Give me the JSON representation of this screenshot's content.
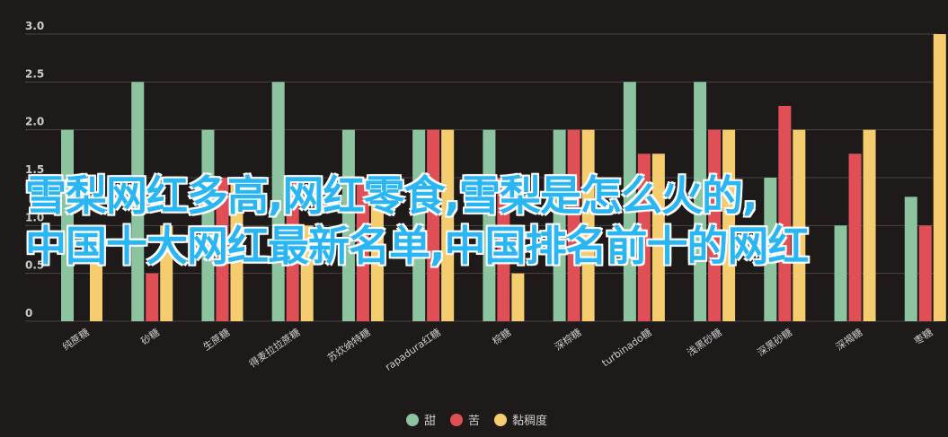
{
  "chart_data": {
    "type": "bar",
    "categories": [
      "纯蔗糖",
      "砂糖",
      "生蔗糖",
      "得麦拉拉蔗糖",
      "苏炊纳特糖",
      "rapadura红糖",
      "棕糖",
      "深棕糖",
      "turbinado糖",
      "浅黑砂糖",
      "深黑砂糖",
      "深褐糖",
      "枣糖"
    ],
    "series": [
      {
        "name": "甜",
        "color": "#8cc4a0",
        "values": [
          2,
          2.5,
          2,
          2.5,
          2,
          2,
          2,
          2,
          2.5,
          2.5,
          1.5,
          1,
          1.3
        ]
      },
      {
        "name": "苦",
        "color": "#e04f55",
        "values": [
          0,
          0.5,
          1.5,
          1.5,
          1.5,
          2,
          1.5,
          2,
          1.75,
          2,
          2.25,
          1.75,
          1
        ]
      },
      {
        "name": "黏稠度",
        "color": "#f5cd6e",
        "values": [
          1,
          1,
          1.5,
          1,
          1.5,
          2,
          0.5,
          2,
          1.75,
          2,
          2,
          2,
          3
        ]
      }
    ],
    "ylim": [
      0,
      3
    ],
    "yticks": [
      "0",
      "0.5",
      "1.0",
      "1.5",
      "2.0",
      "2.5",
      "3.0"
    ],
    "grid": true,
    "legend": "bottom-center"
  },
  "overlay": {
    "line1": "雪梨网红多高,网红零食,雪梨是怎么火的,",
    "line2": "中国十大网红最新名单,中国排名前十的网红"
  },
  "colors": {
    "background": "#1f1a1a",
    "grid": "#4a4444",
    "axis_text": "#cccccc",
    "overlay_text": "#29b6f2"
  }
}
